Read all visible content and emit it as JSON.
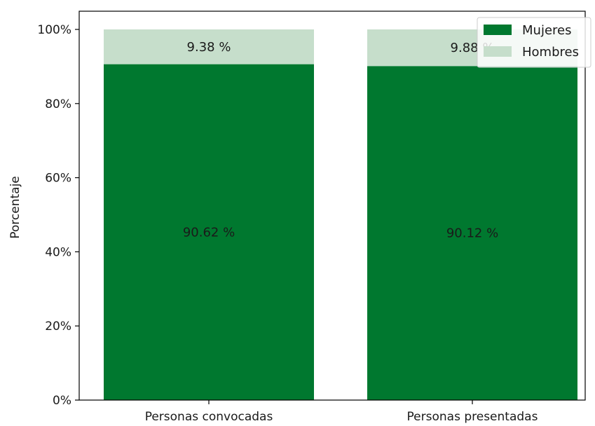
{
  "chart_data": {
    "type": "bar",
    "stacked": true,
    "percent_scale": true,
    "categories": [
      "Personas convocadas",
      "Personas presentadas"
    ],
    "series": [
      {
        "name": "Mujeres",
        "values": [
          90.62,
          90.12
        ],
        "labels": [
          "90.62 %",
          "90.12 %"
        ],
        "color": "#00782f"
      },
      {
        "name": "Hombres",
        "values": [
          9.38,
          9.88
        ],
        "labels": [
          "9.38 %",
          "9.88 %"
        ],
        "color": "#c6decb"
      }
    ],
    "title": "",
    "xlabel": "",
    "ylabel": "Porcentaje",
    "ylim": [
      0,
      100
    ],
    "yticks": [
      0,
      20,
      40,
      60,
      80,
      100
    ],
    "ytick_labels": [
      "0%",
      "20%",
      "40%",
      "60%",
      "80%",
      "100%"
    ],
    "grid": false,
    "legend": "top-right"
  }
}
